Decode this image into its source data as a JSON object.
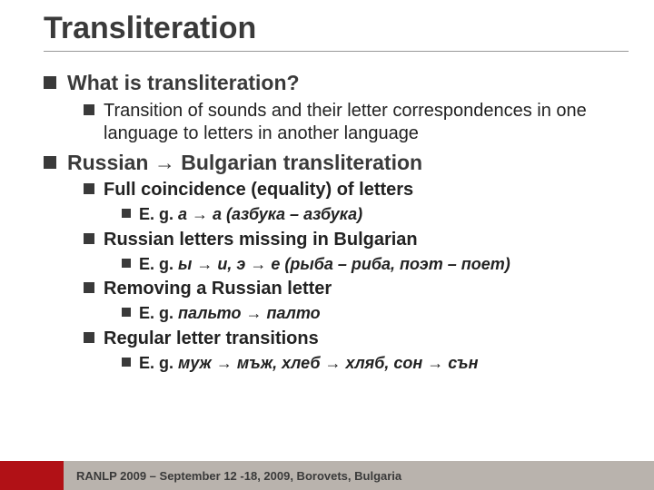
{
  "title": "Transliteration",
  "items": [
    {
      "level": 1,
      "text": "What is transliteration?",
      "bold": true
    },
    {
      "level": 2,
      "text": "Transition of sounds and their letter correspondences in one language to letters in another language",
      "bold": false
    },
    {
      "level": 1,
      "text": "Russian → Bulgarian transliteration",
      "bold": true
    },
    {
      "level": 2,
      "text": "Full coincidence (equality) of letters",
      "bold": true
    },
    {
      "level": 3,
      "eg": "E. g. ",
      "ex": "а → а (азбука – азбука)"
    },
    {
      "level": 2,
      "text": "Russian letters missing in Bulgarian",
      "bold": true
    },
    {
      "level": 3,
      "eg": "E. g. ",
      "ex": "ы → и, э → е (рыба – риба, поэт – поет)"
    },
    {
      "level": 2,
      "text": "Removing a Russian letter",
      "bold": true
    },
    {
      "level": 3,
      "eg": "E. g. ",
      "ex": "пальто → палто"
    },
    {
      "level": 2,
      "text": "Regular letter transitions",
      "bold": true
    },
    {
      "level": 3,
      "eg": "E. g. ",
      "ex": "муж → мъж, хлеб → хляб, сон → сън"
    }
  ],
  "footer": "RANLP 2009 – September 12 -18, 2009, Borovets, Bulgaria",
  "colors": {
    "footer_red": "#b11116",
    "footer_gray": "#b9b3ad",
    "bullet": "#3a3a3a",
    "title": "#3a3a3a"
  }
}
